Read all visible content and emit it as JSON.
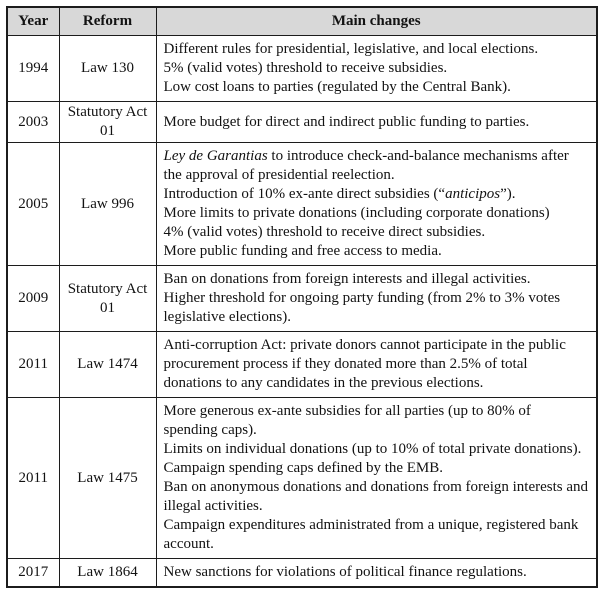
{
  "table": {
    "headers": [
      "Year",
      "Reform",
      "Main changes"
    ],
    "colors": {
      "header_bg": "#d8d8d8",
      "border": "#1c1c1c",
      "text": "#121212"
    },
    "rows": [
      {
        "year": "1994",
        "reform": "Law 130",
        "changes": [
          [
            {
              "text": "Different rules for presidential, legislative, and local elections."
            }
          ],
          [
            {
              "text": "5% (valid votes) threshold to receive subsidies."
            }
          ],
          [
            {
              "text": "Low cost loans to parties (regulated by the Central Bank)."
            }
          ]
        ]
      },
      {
        "year": "2003",
        "reform": "Statutory Act 01",
        "changes": [
          [
            {
              "text": "More budget for direct and indirect public funding to parties."
            }
          ]
        ]
      },
      {
        "year": "2005",
        "reform": "Law 996",
        "changes": [
          [
            {
              "text": "Ley de Garantias",
              "italic": true
            },
            {
              "text": " to introduce check-and-balance mechanisms after the approval of presidential reelection."
            }
          ],
          [
            {
              "text": "Introduction of 10% ex-ante direct subsidies (“"
            },
            {
              "text": "anticipos",
              "italic": true
            },
            {
              "text": "”)."
            }
          ],
          [
            {
              "text": "More limits to private donations (including corporate donations)"
            }
          ],
          [
            {
              "text": "4% (valid votes) threshold to receive direct subsidies."
            }
          ],
          [
            {
              "text": "More public funding and free access to media."
            }
          ]
        ]
      },
      {
        "year": "2009",
        "reform": "Statutory Act 01",
        "changes": [
          [
            {
              "text": "Ban on donations from foreign interests and illegal activities."
            }
          ],
          [
            {
              "text": "Higher threshold for ongoing party funding (from 2% to 3% votes legislative elections)."
            }
          ]
        ]
      },
      {
        "year": "2011",
        "reform": "Law 1474",
        "changes": [
          [
            {
              "text": "Anti-corruption Act: private donors cannot participate in the public procurement process if they donated more than 2.5% of total donations to any candidates in the previous elections."
            }
          ]
        ]
      },
      {
        "year": "2011",
        "reform": "Law 1475",
        "changes": [
          [
            {
              "text": "More generous ex-ante subsidies for all parties (up to 80% of spending caps)."
            }
          ],
          [
            {
              "text": "Limits on individual donations (up to 10% of total private donations)."
            }
          ],
          [
            {
              "text": "Campaign spending caps defined by the EMB."
            }
          ],
          [
            {
              "text": "Ban on anonymous donations and donations from foreign interests and illegal activities."
            }
          ],
          [
            {
              "text": "Campaign expenditures administrated from a unique, registered bank account."
            }
          ]
        ]
      },
      {
        "year": "2017",
        "reform": "Law 1864",
        "changes": [
          [
            {
              "text": "New sanctions for violations of political finance regulations."
            }
          ]
        ]
      }
    ]
  }
}
